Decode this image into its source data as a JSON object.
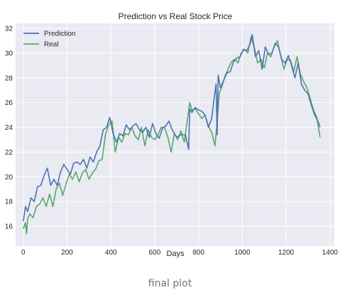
{
  "caption": "final plot",
  "colors": {
    "background": "#eaeaf2",
    "grid": "#ffffff",
    "prediction": "#4c72b0",
    "real": "#55a868"
  },
  "chart_data": {
    "type": "line",
    "title": "Prediction vs Real Stock Price",
    "xlabel": "Days",
    "ylabel": "",
    "xlim": [
      -35,
      1420
    ],
    "ylim": [
      14.4,
      32.4
    ],
    "xticks": [
      0,
      200,
      400,
      600,
      800,
      1000,
      1200,
      1400
    ],
    "yticks": [
      16,
      18,
      20,
      22,
      24,
      26,
      28,
      30,
      32
    ],
    "grid": true,
    "legend": "top-left",
    "series": [
      {
        "name": "Prediction",
        "color": "#4c72b0",
        "x": [
          0,
          10,
          20,
          35,
          50,
          65,
          80,
          95,
          110,
          125,
          140,
          155,
          170,
          185,
          200,
          215,
          230,
          245,
          260,
          275,
          290,
          305,
          320,
          335,
          350,
          365,
          380,
          395,
          410,
          425,
          440,
          455,
          470,
          485,
          500,
          515,
          530,
          545,
          560,
          575,
          590,
          605,
          620,
          635,
          650,
          665,
          680,
          700,
          720,
          740,
          755,
          760,
          770,
          785,
          800,
          815,
          830,
          845,
          860,
          870,
          880,
          885,
          890,
          900,
          915,
          930,
          945,
          960,
          975,
          990,
          1005,
          1020,
          1035,
          1045,
          1060,
          1075,
          1090,
          1105,
          1120,
          1135,
          1150,
          1165,
          1180,
          1195,
          1210,
          1225,
          1240,
          1255,
          1270,
          1285,
          1300,
          1315,
          1330,
          1345,
          1355
        ],
        "y": [
          16.4,
          17.6,
          17.2,
          18.3,
          18.0,
          19.2,
          19.3,
          20.1,
          20.7,
          19.3,
          19.8,
          19.3,
          20.4,
          21.0,
          20.6,
          20.2,
          21.1,
          21.2,
          21.0,
          21.4,
          20.7,
          21.6,
          21.2,
          22.0,
          22.5,
          23.8,
          24.0,
          24.8,
          23.5,
          22.8,
          23.5,
          23.3,
          24.2,
          23.8,
          24.1,
          24.3,
          23.8,
          23.6,
          24.0,
          23.2,
          24.3,
          23.5,
          23.1,
          23.9,
          24.1,
          24.5,
          23.8,
          23.2,
          23.4,
          23.4,
          22.2,
          25.5,
          25.2,
          25.6,
          25.4,
          25.3,
          25.0,
          24.0,
          24.7,
          26.2,
          27.5,
          23.4,
          28.2,
          27.2,
          27.8,
          28.4,
          28.5,
          29.3,
          29.6,
          29.7,
          30.3,
          30.2,
          30.7,
          31.5,
          29.7,
          30.2,
          28.7,
          30.5,
          29.9,
          30.0,
          30.8,
          30.5,
          29.5,
          29.2,
          29.8,
          29.0,
          28.0,
          29.2,
          27.5,
          27.0,
          26.7,
          25.8,
          25.0,
          24.5,
          24.0
        ]
      },
      {
        "name": "Real",
        "color": "#55a868",
        "x": [
          0,
          10,
          15,
          20,
          30,
          45,
          60,
          75,
          90,
          105,
          120,
          135,
          150,
          165,
          180,
          195,
          210,
          225,
          240,
          255,
          270,
          285,
          300,
          315,
          330,
          345,
          360,
          375,
          390,
          405,
          420,
          435,
          450,
          465,
          480,
          495,
          510,
          525,
          540,
          555,
          570,
          585,
          600,
          615,
          630,
          645,
          660,
          675,
          690,
          705,
          720,
          735,
          750,
          760,
          770,
          785,
          800,
          815,
          830,
          845,
          860,
          875,
          885,
          895,
          905,
          920,
          935,
          950,
          965,
          980,
          995,
          1010,
          1025,
          1040,
          1055,
          1070,
          1085,
          1100,
          1115,
          1130,
          1145,
          1160,
          1175,
          1190,
          1205,
          1220,
          1235,
          1250,
          1265,
          1280,
          1295,
          1310,
          1325,
          1340,
          1355
        ],
        "y": [
          15.8,
          16.3,
          15.4,
          16.6,
          17.0,
          16.7,
          17.6,
          17.8,
          18.3,
          17.6,
          18.6,
          17.6,
          19.0,
          19.5,
          18.5,
          19.4,
          20.2,
          19.8,
          20.4,
          19.6,
          20.3,
          20.6,
          19.8,
          20.3,
          20.6,
          21.3,
          21.4,
          23.4,
          24.2,
          24.5,
          22.0,
          23.2,
          22.8,
          23.5,
          23.4,
          24.0,
          23.3,
          23.0,
          24.0,
          22.5,
          23.8,
          23.2,
          23.0,
          23.4,
          24.0,
          24.0,
          23.2,
          22.0,
          23.5,
          23.0,
          23.7,
          22.8,
          24.7,
          26.0,
          25.4,
          25.5,
          25.1,
          24.7,
          25.0,
          24.1,
          23.6,
          22.5,
          24.4,
          26.8,
          27.2,
          28.1,
          28.7,
          29.3,
          29.5,
          29.2,
          30.0,
          30.3,
          30.0,
          31.3,
          30.4,
          29.2,
          29.5,
          28.8,
          30.0,
          29.7,
          30.5,
          31.0,
          29.8,
          28.7,
          29.5,
          29.4,
          28.5,
          29.7,
          28.3,
          27.7,
          27.2,
          26.3,
          25.4,
          24.8,
          23.2
        ]
      }
    ]
  }
}
